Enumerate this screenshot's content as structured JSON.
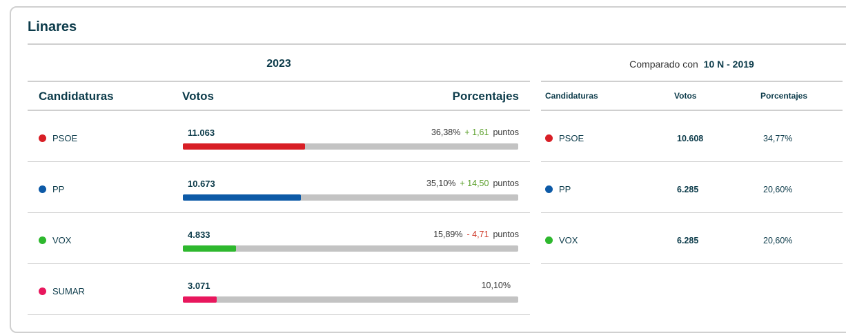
{
  "title": "Linares",
  "year": "2023",
  "compared": {
    "prefix": "Comparado con",
    "label": "10 N - 2019"
  },
  "headers": {
    "candidaturas": "Candidaturas",
    "votos": "Votos",
    "porcentajes": "Porcentajes"
  },
  "rows": [
    {
      "party": "PSOE",
      "color": "#d81f26",
      "votes": "11.063",
      "pct": "36,38%",
      "change": "+ 1,61",
      "change_dir": "up",
      "points": "puntos",
      "share": 0.3638
    },
    {
      "party": "PP",
      "color": "#0d5aa7",
      "votes": "10.673",
      "pct": "35,10%",
      "change": "+ 14,50",
      "change_dir": "up",
      "points": "puntos",
      "share": 0.351
    },
    {
      "party": "VOX",
      "color": "#2eb82e",
      "votes": "4.833",
      "pct": "15,89%",
      "change": "- 4,71",
      "change_dir": "down",
      "points": "puntos",
      "share": 0.1589
    },
    {
      "party": "SUMAR",
      "color": "#e8175d",
      "votes": "3.071",
      "pct": "10,10%",
      "change": "",
      "change_dir": "",
      "points": "",
      "share": 0.101
    }
  ],
  "previous": [
    {
      "party": "PSOE",
      "color": "#d81f26",
      "votes": "10.608",
      "pct": "34,77%"
    },
    {
      "party": "PP",
      "color": "#0d5aa7",
      "votes": "6.285",
      "pct": "20,60%"
    },
    {
      "party": "VOX",
      "color": "#2eb82e",
      "votes": "6.285",
      "pct": "20,60%"
    }
  ]
}
